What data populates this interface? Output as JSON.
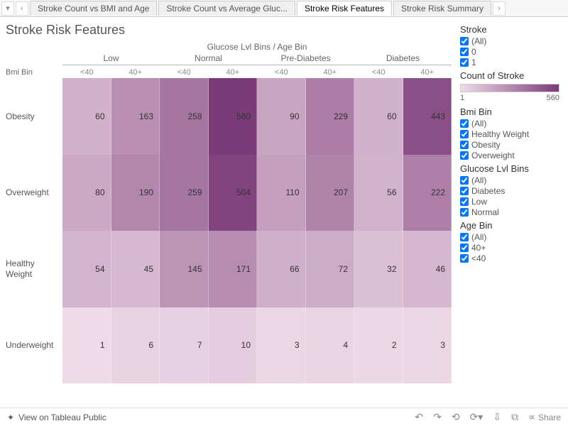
{
  "tabs": {
    "items": [
      "Stroke Count vs BMI and Age",
      "Stroke Count vs Average Gluc...",
      "Stroke Risk Features",
      "Stroke Risk Summary"
    ],
    "activeIndex": 2
  },
  "title": "Stroke Risk Features",
  "heatmap": {
    "type": "heatmap",
    "superHeader": "Glucose Lvl Bins  /  Age Bin",
    "cornerLabel": "Bmi Bin",
    "colGroups": [
      "Low",
      "Normal",
      "Pre-Diabetes",
      "Diabetes"
    ],
    "subCols": [
      "<40",
      "40+"
    ],
    "rowLabels": [
      "Obesity",
      "Overweight",
      "Healthy Weight",
      "Underweight"
    ],
    "values": [
      [
        60,
        163,
        258,
        560,
        90,
        229,
        60,
        443
      ],
      [
        80,
        190,
        259,
        504,
        110,
        207,
        56,
        222
      ],
      [
        54,
        45,
        145,
        171,
        66,
        72,
        32,
        46
      ],
      [
        1,
        6,
        7,
        10,
        3,
        4,
        2,
        3
      ]
    ],
    "color_min": "#efdbe8",
    "color_max": "#7b3a78",
    "value_min": 1,
    "value_max": 560,
    "text_color": "#333333",
    "background_color": "#ffffff"
  },
  "filters": {
    "stroke": {
      "title": "Stroke",
      "items": [
        "(All)",
        "0",
        "1"
      ]
    },
    "legend": {
      "title": "Count of Stroke",
      "min": "1",
      "max": "560"
    },
    "bmi": {
      "title": "Bmi Bin",
      "items": [
        "(All)",
        "Healthy Weight",
        "Obesity",
        "Overweight"
      ]
    },
    "glucose": {
      "title": "Glucose Lvl Bins",
      "items": [
        "(All)",
        "Diabetes",
        "Low",
        "Normal"
      ]
    },
    "age": {
      "title": "Age Bin",
      "items": [
        "(All)",
        "40+",
        "<40"
      ]
    }
  },
  "toolbar": {
    "view": "View on Tableau Public",
    "share": "Share"
  }
}
